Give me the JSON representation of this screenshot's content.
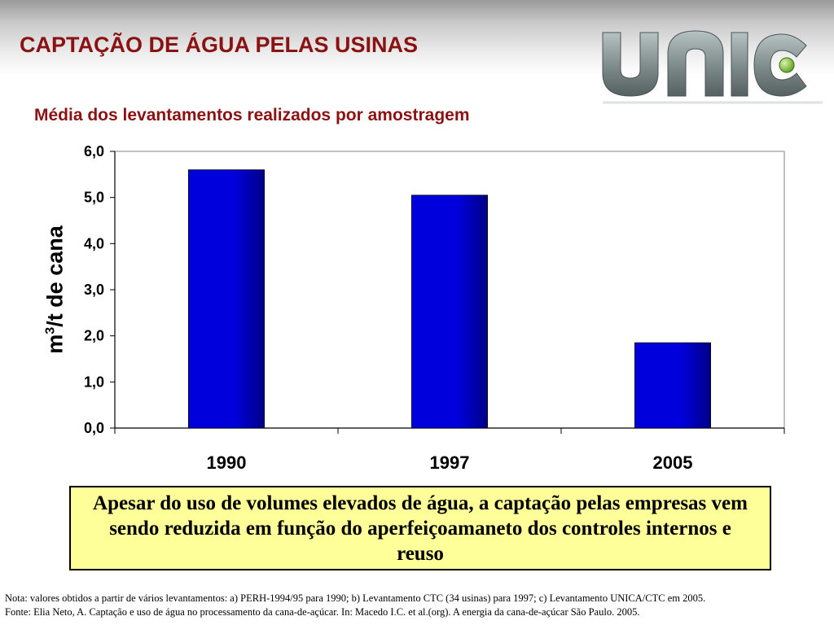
{
  "slide": {
    "title": "CAPTAÇÃO DE ÁGUA PELAS USINAS",
    "subtitle": "Média dos levantamentos realizados por amostragem"
  },
  "logo": {
    "text": "unica",
    "colors": {
      "letters": "#7d8a8a",
      "dot": "#7fbf3a"
    }
  },
  "chart_data": {
    "type": "bar",
    "categories": [
      "1990",
      "1997",
      "2005"
    ],
    "values": [
      5.6,
      5.05,
      1.85
    ],
    "ylabel_base": "m",
    "ylabel_sup": "3",
    "ylabel_rest": "/t de cana",
    "ylim": [
      0,
      6
    ],
    "yticks": [
      "0,0",
      "1,0",
      "2,0",
      "3,0",
      "4,0",
      "5,0",
      "6,0"
    ],
    "grid": false,
    "legend": "none",
    "colors": {
      "bar": "#0000dd",
      "bar_dark": "#000088"
    }
  },
  "callout": {
    "text": "Apesar do uso de volumes elevados de água, a captação pelas empresas vem sendo reduzida em função do aperfeiçoamaneto dos controles internos e reuso",
    "background": "#ffff99"
  },
  "footnotes": {
    "note": "Nota: valores obtidos a partir de vários levantamentos:  a) PERH-1994/95 para 1990;  b) Levantamento CTC (34 usinas) para 1997;  c) Levantamento UNICA/CTC em 2005.",
    "source": "Fonte: Elia Neto, A. Captação e uso de água no processamento da cana-de-açúcar. In: Macedo I.C. et al.(org). A energia da cana-de-açúcar São Paulo. 2005."
  }
}
